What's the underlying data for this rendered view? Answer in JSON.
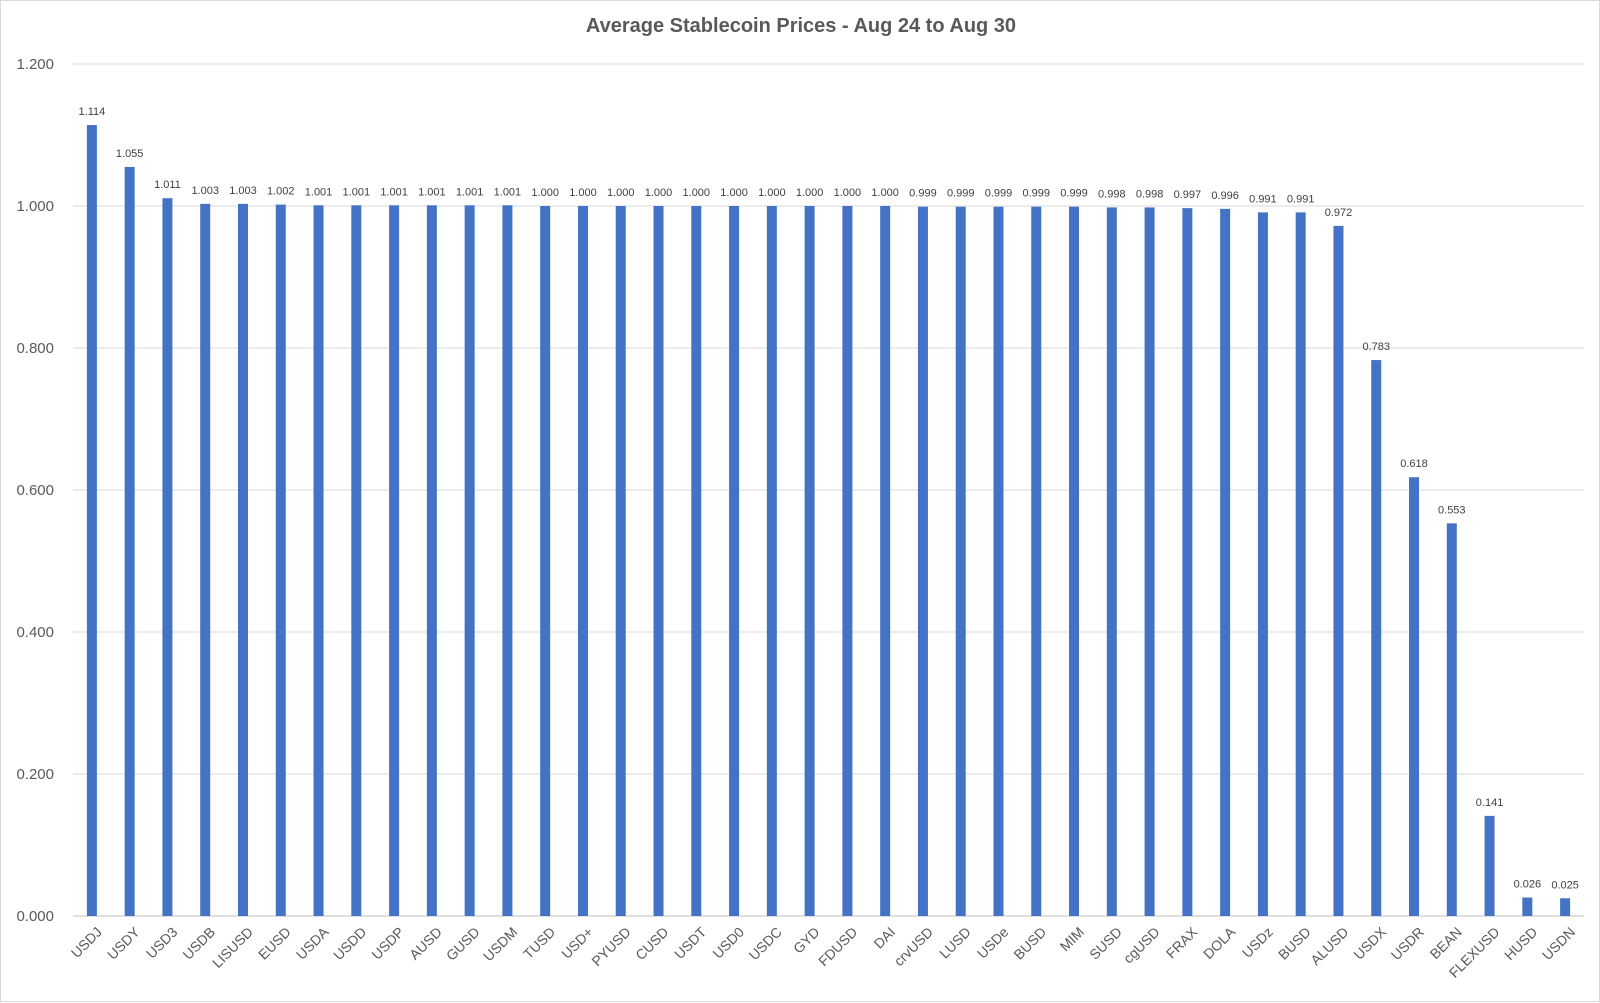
{
  "chart_data": {
    "type": "bar",
    "title": "Average Stablecoin Prices - Aug 24 to Aug 30",
    "xlabel": "",
    "ylabel": "",
    "ylim": [
      0,
      1.2
    ],
    "yticks": [
      "0.000",
      "0.200",
      "0.400",
      "0.600",
      "0.800",
      "1.000",
      "1.200"
    ],
    "ytick_values": [
      0,
      0.2,
      0.4,
      0.6,
      0.8,
      1.0,
      1.2
    ],
    "grid": true,
    "legend": "none",
    "bar_color": "#4472C4",
    "categories": [
      "USDJ",
      "USDY",
      "USD3",
      "USDB",
      "LISUSD",
      "EUSD",
      "USDA",
      "USDD",
      "USDP",
      "AUSD",
      "GUSD",
      "USDM",
      "TUSD",
      "USD+",
      "PYUSD",
      "CUSD",
      "USDT",
      "USD0",
      "USDC",
      "GYD",
      "FDUSD",
      "DAI",
      "crvUSD",
      "LUSD",
      "USDe",
      "BUSD",
      "MIM",
      "SUSD",
      "cgUSD",
      "FRAX",
      "DOLA",
      "USDz",
      "BUSD",
      "ALUSD",
      "USDX",
      "USDR",
      "BEAN",
      "FLEXUSD",
      "HUSD",
      "USDN"
    ],
    "values": [
      1.114,
      1.055,
      1.011,
      1.003,
      1.003,
      1.002,
      1.001,
      1.001,
      1.001,
      1.001,
      1.001,
      1.001,
      1.0,
      1.0,
      1.0,
      1.0,
      1.0,
      1.0,
      1.0,
      1.0,
      1.0,
      1.0,
      0.999,
      0.999,
      0.999,
      0.999,
      0.999,
      0.998,
      0.998,
      0.997,
      0.996,
      0.991,
      0.991,
      0.972,
      0.783,
      0.618,
      0.553,
      0.141,
      0.026,
      0.025
    ],
    "value_labels": [
      "1.114",
      "1.055",
      "1.011",
      "1.003",
      "1.003",
      "1.002",
      "1.001",
      "1.001",
      "1.001",
      "1.001",
      "1.001",
      "1.001",
      "1.000",
      "1.000",
      "1.000",
      "1.000",
      "1.000",
      "1.000",
      "1.000",
      "1.000",
      "1.000",
      "1.000",
      "0.999",
      "0.999",
      "0.999",
      "0.999",
      "0.999",
      "0.998",
      "0.998",
      "0.997",
      "0.996",
      "0.991",
      "0.991",
      "0.972",
      "0.783",
      "0.618",
      "0.553",
      "0.141",
      "0.026",
      "0.025"
    ]
  }
}
